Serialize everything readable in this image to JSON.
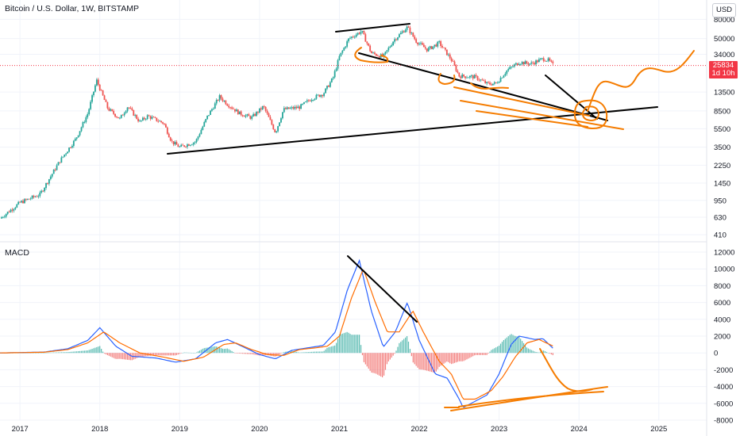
{
  "header": {
    "title": "Bitcoin / U.S. Dollar, 1W, BITSTAMP",
    "currency_button": "USD"
  },
  "price_tag": {
    "price": "25834",
    "countdown": "1d 10h"
  },
  "macd_panel": {
    "label": "MACD"
  },
  "colors": {
    "up": "#26a69a",
    "down": "#ef5350",
    "price_line": "#f23645",
    "macd_line": "#2962ff",
    "signal_line": "#ff6d00",
    "hist_up": "#26a69a",
    "hist_down": "#ef5350",
    "drawing_black": "#000000",
    "drawing_orange": "#f57c00"
  },
  "chart_data": [
    {
      "type": "candlestick",
      "title": "Bitcoin / U.S. Dollar, 1W, BITSTAMP",
      "yscale": "log",
      "ylim": [
        380,
        110000
      ],
      "yticks": [
        410,
        630,
        950,
        1450,
        2250,
        3500,
        5500,
        8500,
        13500,
        34000,
        50000,
        80000
      ],
      "xticks": [
        "2017",
        "2018",
        "2019",
        "2020",
        "2021",
        "2022",
        "2023",
        "2024",
        "2025"
      ],
      "last_price": 25834,
      "close_path": [
        [
          2016.75,
          610
        ],
        [
          2017.0,
          900
        ],
        [
          2017.25,
          1100
        ],
        [
          2017.5,
          2500
        ],
        [
          2017.7,
          4300
        ],
        [
          2017.85,
          8000
        ],
        [
          2017.96,
          18000
        ],
        [
          2018.1,
          9000
        ],
        [
          2018.25,
          7000
        ],
        [
          2018.35,
          9500
        ],
        [
          2018.5,
          6500
        ],
        [
          2018.6,
          7500
        ],
        [
          2018.8,
          6300
        ],
        [
          2018.9,
          4000
        ],
        [
          2019.0,
          3500
        ],
        [
          2019.2,
          4000
        ],
        [
          2019.35,
          7500
        ],
        [
          2019.5,
          12000
        ],
        [
          2019.6,
          10000
        ],
        [
          2019.75,
          8000
        ],
        [
          2019.9,
          7200
        ],
        [
          2020.05,
          9500
        ],
        [
          2020.2,
          5000
        ],
        [
          2020.3,
          8800
        ],
        [
          2020.5,
          9300
        ],
        [
          2020.65,
          11500
        ],
        [
          2020.8,
          13000
        ],
        [
          2020.92,
          19000
        ],
        [
          2021.0,
          32000
        ],
        [
          2021.12,
          50000
        ],
        [
          2021.28,
          60000
        ],
        [
          2021.4,
          35000
        ],
        [
          2021.55,
          32000
        ],
        [
          2021.68,
          48000
        ],
        [
          2021.85,
          66000
        ],
        [
          2021.96,
          47000
        ],
        [
          2022.1,
          38000
        ],
        [
          2022.25,
          45000
        ],
        [
          2022.4,
          30000
        ],
        [
          2022.5,
          20000
        ],
        [
          2022.7,
          19500
        ],
        [
          2022.85,
          16500
        ],
        [
          2022.96,
          16600
        ],
        [
          2023.1,
          23000
        ],
        [
          2023.25,
          28000
        ],
        [
          2023.4,
          27000
        ],
        [
          2023.55,
          30500
        ],
        [
          2023.62,
          29300
        ],
        [
          2023.68,
          25834
        ]
      ]
    },
    {
      "type": "line",
      "title": "MACD",
      "ylim": [
        -8000,
        12000
      ],
      "yticks": [
        12000,
        10000,
        8000,
        6000,
        4000,
        2000,
        0,
        -2000,
        -4000,
        -6000,
        -8000
      ],
      "series": [
        {
          "name": "",
          "values": [
            [
              2016.75,
              0
            ],
            [
              2017.3,
              100
            ],
            [
              2017.6,
              500
            ],
            [
              2017.85,
              1500
            ],
            [
              2018.0,
              3000
            ],
            [
              2018.2,
              800
            ],
            [
              2018.4,
              -400
            ],
            [
              2018.7,
              -600
            ],
            [
              2018.95,
              -1100
            ],
            [
              2019.2,
              -700
            ],
            [
              2019.45,
              1200
            ],
            [
              2019.6,
              1600
            ],
            [
              2019.8,
              700
            ],
            [
              2020.0,
              -200
            ],
            [
              2020.2,
              -700
            ],
            [
              2020.4,
              300
            ],
            [
              2020.6,
              600
            ],
            [
              2020.8,
              900
            ],
            [
              2020.95,
              2500
            ],
            [
              2021.1,
              7500
            ],
            [
              2021.25,
              11000
            ],
            [
              2021.4,
              5000
            ],
            [
              2021.55,
              700
            ],
            [
              2021.7,
              2500
            ],
            [
              2021.85,
              6000
            ],
            [
              2022.0,
              1500
            ],
            [
              2022.2,
              -2500
            ],
            [
              2022.35,
              -3000
            ],
            [
              2022.5,
              -5500
            ],
            [
              2022.55,
              -6500
            ],
            [
              2022.65,
              -6000
            ],
            [
              2022.85,
              -5000
            ],
            [
              2023.0,
              -2500
            ],
            [
              2023.15,
              1000
            ],
            [
              2023.25,
              2000
            ],
            [
              2023.45,
              1600
            ],
            [
              2023.55,
              1700
            ],
            [
              2023.68,
              500
            ]
          ]
        },
        {
          "name": "",
          "values": [
            [
              2016.75,
              0
            ],
            [
              2017.3,
              80
            ],
            [
              2017.6,
              400
            ],
            [
              2017.85,
              1200
            ],
            [
              2018.05,
              2500
            ],
            [
              2018.25,
              1200
            ],
            [
              2018.5,
              0
            ],
            [
              2018.8,
              -500
            ],
            [
              2019.05,
              -1000
            ],
            [
              2019.3,
              -500
            ],
            [
              2019.55,
              1000
            ],
            [
              2019.7,
              1200
            ],
            [
              2019.9,
              400
            ],
            [
              2020.1,
              -200
            ],
            [
              2020.3,
              -300
            ],
            [
              2020.5,
              400
            ],
            [
              2020.7,
              600
            ],
            [
              2020.85,
              800
            ],
            [
              2021.0,
              2000
            ],
            [
              2021.15,
              6500
            ],
            [
              2021.3,
              10000
            ],
            [
              2021.45,
              6000
            ],
            [
              2021.6,
              2500
            ],
            [
              2021.75,
              2500
            ],
            [
              2021.92,
              5000
            ],
            [
              2022.05,
              2500
            ],
            [
              2022.25,
              -1000
            ],
            [
              2022.4,
              -2500
            ],
            [
              2022.55,
              -5500
            ],
            [
              2022.7,
              -5500
            ],
            [
              2022.9,
              -4500
            ],
            [
              2023.05,
              -2800
            ],
            [
              2023.2,
              -500
            ],
            [
              2023.35,
              1200
            ],
            [
              2023.5,
              1600
            ],
            [
              2023.68,
              800
            ]
          ]
        }
      ]
    }
  ]
}
